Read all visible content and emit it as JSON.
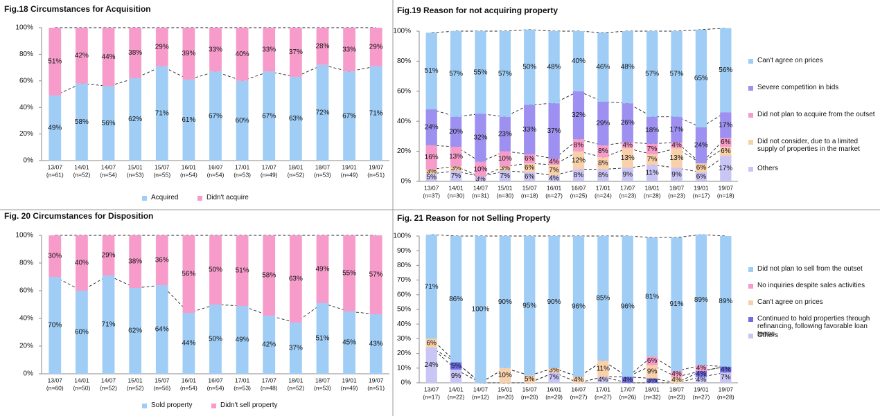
{
  "chart_data": [
    {
      "type": "stacked_bar",
      "title": "Fig.18  Circumstances for Acquisition",
      "categories": [
        "13/07",
        "14/01",
        "14/07",
        "15/01",
        "15/07",
        "16/01",
        "16/07",
        "17/01",
        "17/07",
        "18/01",
        "18/07",
        "19/01",
        "19/07"
      ],
      "n_labels": [
        "(n=61)",
        "(n=52)",
        "(n=54)",
        "(n=53)",
        "(n=55)",
        "(n=54)",
        "(n=54)",
        "(n=53)",
        "(n=49)",
        "(n=52)",
        "(n=53)",
        "(n=49)",
        "(n=51)"
      ],
      "ylim": [
        0,
        100
      ],
      "yticks": [
        {
          "value": 0,
          "label": "0%"
        },
        {
          "value": 20,
          "label": "20%"
        },
        {
          "value": 40,
          "label": "40%"
        },
        {
          "value": 60,
          "label": "60%"
        },
        {
          "value": 80,
          "label": "80%"
        },
        {
          "value": 100,
          "label": "100%"
        }
      ],
      "legend": "bottom",
      "series": [
        {
          "name": "Acquired",
          "color": "#9fcdf5",
          "values": [
            49,
            58,
            56,
            62,
            71,
            61,
            67,
            60,
            67,
            63,
            72,
            67,
            71
          ],
          "value_labels": [
            "49%",
            "58%",
            "56%",
            "62%",
            "71%",
            "61%",
            "67%",
            "60%",
            "67%",
            "63%",
            "72%",
            "67%",
            "71%"
          ]
        },
        {
          "name": "Didn't acquire",
          "color": "#f79cca",
          "values": [
            51,
            42,
            44,
            38,
            29,
            39,
            33,
            40,
            33,
            37,
            28,
            33,
            29
          ],
          "value_labels": [
            "51%",
            "42%",
            "44%",
            "38%",
            "29%",
            "39%",
            "33%",
            "40%",
            "33%",
            "37%",
            "28%",
            "33%",
            "29%"
          ]
        }
      ]
    },
    {
      "type": "stacked_bar",
      "title": "Fig.19  Reason for not acquiring property",
      "categories": [
        "13/07",
        "14/01",
        "14/07",
        "15/01",
        "15/07",
        "16/01",
        "16/07",
        "17/01",
        "17/07",
        "18/01",
        "18/07",
        "19/01",
        "19/07"
      ],
      "n_labels": [
        "(n=37)",
        "(n=30)",
        "(n=31)",
        "(n=30)",
        "(n=18)",
        "(n=27)",
        "(n=25)",
        "(n=24)",
        "(n=23)",
        "(n=28)",
        "(n=23)",
        "(n=17)",
        "(n=18)"
      ],
      "ylim": [
        0,
        100
      ],
      "yticks": [
        {
          "value": 0,
          "label": "0%"
        },
        {
          "value": 20,
          "label": "20%"
        },
        {
          "value": 40,
          "label": "40%"
        },
        {
          "value": 60,
          "label": "60%"
        },
        {
          "value": 80,
          "label": "80%"
        },
        {
          "value": 100,
          "label": "100%"
        }
      ],
      "legend": "right",
      "series": [
        {
          "name": "Others",
          "color": "#c9c5f5",
          "values": [
            5,
            7,
            3,
            7,
            6,
            4,
            8,
            8,
            9,
            11,
            9,
            6,
            17
          ],
          "value_labels": [
            "5%",
            "7%",
            "3%",
            "7%",
            "6%",
            "4%",
            "8%",
            "8%",
            "9%",
            "11%",
            "9%",
            "6%",
            "17%"
          ]
        },
        {
          "name": "Did not consider, due to a limited supply of properties in the market",
          "color": "#f8d0aa",
          "values": [
            3,
            3,
            0,
            3,
            6,
            7,
            12,
            8,
            13,
            7,
            13,
            6,
            6
          ],
          "value_labels": [
            "3%",
            "3%",
            null,
            "3%",
            "6%",
            "7%",
            "12%",
            "8%",
            "13%",
            "7%",
            "13%",
            "6%",
            "6%"
          ]
        },
        {
          "name": "Did not plan to acquire from the outset",
          "color": "#f79cca",
          "values": [
            16,
            13,
            10,
            10,
            6,
            4,
            8,
            8,
            4,
            7,
            4,
            0,
            6
          ],
          "value_labels": [
            "16%",
            "13%",
            "10%",
            "10%",
            "6%",
            "4%",
            "8%",
            "8%",
            "4%",
            "7%",
            "4%",
            null,
            "6%"
          ]
        },
        {
          "name": "Severe competition in bids",
          "color": "#9d90f0",
          "values": [
            24,
            20,
            32,
            23,
            33,
            37,
            32,
            29,
            26,
            18,
            17,
            24,
            17
          ],
          "value_labels": [
            "24%",
            "20%",
            "32%",
            "23%",
            "33%",
            "37%",
            "32%",
            "29%",
            "26%",
            "18%",
            "17%",
            "24%",
            "17%"
          ]
        },
        {
          "name": "Can't agree on prices",
          "color": "#9fcdf5",
          "values": [
            51,
            57,
            55,
            57,
            50,
            48,
            40,
            46,
            48,
            57,
            57,
            65,
            56
          ],
          "value_labels": [
            "51%",
            "57%",
            "55%",
            "57%",
            "50%",
            "48%",
            "40%",
            "46%",
            "48%",
            "57%",
            "57%",
            "65%",
            "56%"
          ]
        }
      ]
    },
    {
      "type": "stacked_bar",
      "title": "Fig. 20 Circumstances for Disposition",
      "categories": [
        "13/07",
        "14/01",
        "14/07",
        "15/01",
        "15/07",
        "16/01",
        "16/07",
        "17/01",
        "17/07",
        "18/01",
        "18/07",
        "19/01",
        "19/07"
      ],
      "n_labels": [
        "(n=60)",
        "(n=50)",
        "(n=52)",
        "(n=52)",
        "(n=56)",
        "(n=54)",
        "(n=54)",
        "(n=53)",
        "(n=48)",
        "(n=52)",
        "(n=53)",
        "(n=49)",
        "(n=51)"
      ],
      "ylim": [
        0,
        100
      ],
      "yticks": [
        {
          "value": 0,
          "label": "0%"
        },
        {
          "value": 20,
          "label": "20%"
        },
        {
          "value": 40,
          "label": "40%"
        },
        {
          "value": 60,
          "label": "60%"
        },
        {
          "value": 80,
          "label": "80%"
        },
        {
          "value": 100,
          "label": "100%"
        }
      ],
      "legend": "bottom",
      "series": [
        {
          "name": "Sold property",
          "color": "#9fcdf5",
          "values": [
            70,
            60,
            71,
            62,
            64,
            44,
            50,
            49,
            42,
            37,
            51,
            45,
            43
          ],
          "value_labels": [
            "70%",
            "60%",
            "71%",
            "62%",
            "64%",
            "44%",
            "50%",
            "49%",
            "42%",
            "37%",
            "51%",
            "45%",
            "43%"
          ]
        },
        {
          "name": "Didn't sell property",
          "color": "#f79cca",
          "values": [
            30,
            40,
            29,
            38,
            36,
            56,
            50,
            51,
            58,
            63,
            49,
            55,
            57
          ],
          "value_labels": [
            "30%",
            "40%",
            "29%",
            "38%",
            "36%",
            "56%",
            "50%",
            "51%",
            "58%",
            "63%",
            "49%",
            "55%",
            "57%"
          ]
        }
      ]
    },
    {
      "type": "stacked_bar",
      "title": "Fig. 21 Reason for not Selling Property",
      "categories": [
        "13/07",
        "14/01",
        "14/07",
        "15/01",
        "15/07",
        "16/01",
        "16/07",
        "17/01",
        "17/07",
        "18/01",
        "18/07",
        "19/01",
        "19/07"
      ],
      "n_labels": [
        "(n=17)",
        "(n=22)",
        "(n=12)",
        "(n=20)",
        "(n=20)",
        "(n=29)",
        "(n=27)",
        "(n=27)",
        "(n=26)",
        "(n=32)",
        "(n=23)",
        "(n=27)",
        "(n=28)"
      ],
      "ylim": [
        0,
        100
      ],
      "yticks": [
        {
          "value": 0,
          "label": "0%"
        },
        {
          "value": 10,
          "label": "10%"
        },
        {
          "value": 20,
          "label": "20%"
        },
        {
          "value": 30,
          "label": "30%"
        },
        {
          "value": 40,
          "label": "40%"
        },
        {
          "value": 50,
          "label": "50%"
        },
        {
          "value": 60,
          "label": "60%"
        },
        {
          "value": 70,
          "label": "70%"
        },
        {
          "value": 80,
          "label": "80%"
        },
        {
          "value": 90,
          "label": "90%"
        },
        {
          "value": 100,
          "label": "100%"
        }
      ],
      "legend": "right",
      "series": [
        {
          "name": "Others",
          "color": "#c9c5f5",
          "values": [
            24,
            9,
            0,
            0,
            0,
            7,
            0,
            4,
            0,
            0,
            0,
            4,
            7
          ],
          "value_labels": [
            "24%",
            "9%",
            null,
            null,
            null,
            "7%",
            null,
            "4%",
            null,
            null,
            null,
            "4%",
            "7%"
          ]
        },
        {
          "name": "Continued to hold properties through refinancing, following favorable loan terms",
          "color": "#6d6de6",
          "values": [
            0,
            5,
            0,
            0,
            0,
            0,
            0,
            0,
            4,
            3,
            0,
            4,
            4
          ],
          "value_labels": [
            null,
            "5%",
            null,
            null,
            null,
            null,
            null,
            null,
            "4%",
            "3%",
            null,
            "4%",
            "4%"
          ]
        },
        {
          "name": "Can't agree on prices",
          "color": "#f8d0aa",
          "values": [
            6,
            0,
            0,
            10,
            5,
            3,
            4,
            11,
            0,
            9,
            4,
            0,
            0
          ],
          "value_labels": [
            "6%",
            null,
            null,
            "10%",
            "5%",
            "3%",
            "4%",
            "11%",
            null,
            "9%",
            "4%",
            null,
            null
          ]
        },
        {
          "name": "No inquiries despite sales activities",
          "color": "#f79cca",
          "values": [
            0,
            0,
            0,
            0,
            0,
            0,
            0,
            0,
            0,
            6,
            4,
            4,
            0
          ],
          "value_labels": [
            null,
            null,
            null,
            null,
            null,
            null,
            null,
            null,
            null,
            "6%",
            "4%",
            "4%",
            null
          ]
        },
        {
          "name": "Did not plan to sell from the outset",
          "color": "#9fcdf5",
          "values": [
            71,
            86,
            100,
            90,
            95,
            90,
            96,
            85,
            96,
            81,
            91,
            89,
            89
          ],
          "value_labels": [
            "71%",
            "86%",
            "100%",
            "90%",
            "95%",
            "90%",
            "96%",
            "85%",
            "96%",
            "81%",
            "91%",
            "89%",
            "89%"
          ]
        }
      ]
    }
  ]
}
